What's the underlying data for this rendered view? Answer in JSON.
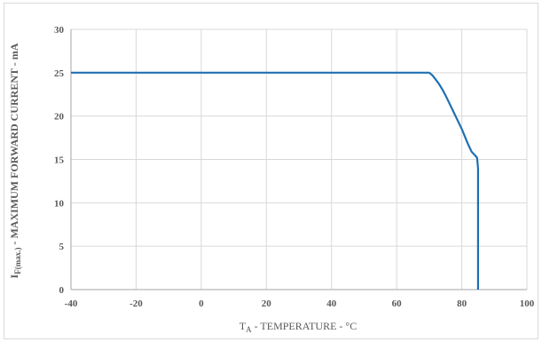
{
  "chart_data": {
    "type": "line",
    "title": "",
    "xlabel": {
      "main": "T",
      "sub": "A",
      "rest": " - TEMPERATURE - °C"
    },
    "ylabel": {
      "main": "I",
      "sub": "F(max.)",
      "rest": " - MAXIMUM FORWARD CURRENT  - mA"
    },
    "xlim": [
      -40,
      100
    ],
    "ylim": [
      0,
      30
    ],
    "xticks": [
      -40,
      -20,
      0,
      20,
      40,
      60,
      80,
      100
    ],
    "yticks": [
      0,
      5,
      10,
      15,
      20,
      25,
      30
    ],
    "grid": true,
    "series": [
      {
        "color": "#1f6fb2",
        "x": [
          -40,
          70,
          71,
          72,
          73,
          74,
          75,
          80,
          82,
          83,
          84,
          84.7,
          85,
          85,
          85
        ],
        "y": [
          25,
          25,
          24.7,
          24.2,
          23.7,
          23.1,
          22.4,
          18.5,
          16.7,
          15.9,
          15.5,
          15.2,
          14.0,
          10.0,
          0
        ]
      }
    ]
  }
}
